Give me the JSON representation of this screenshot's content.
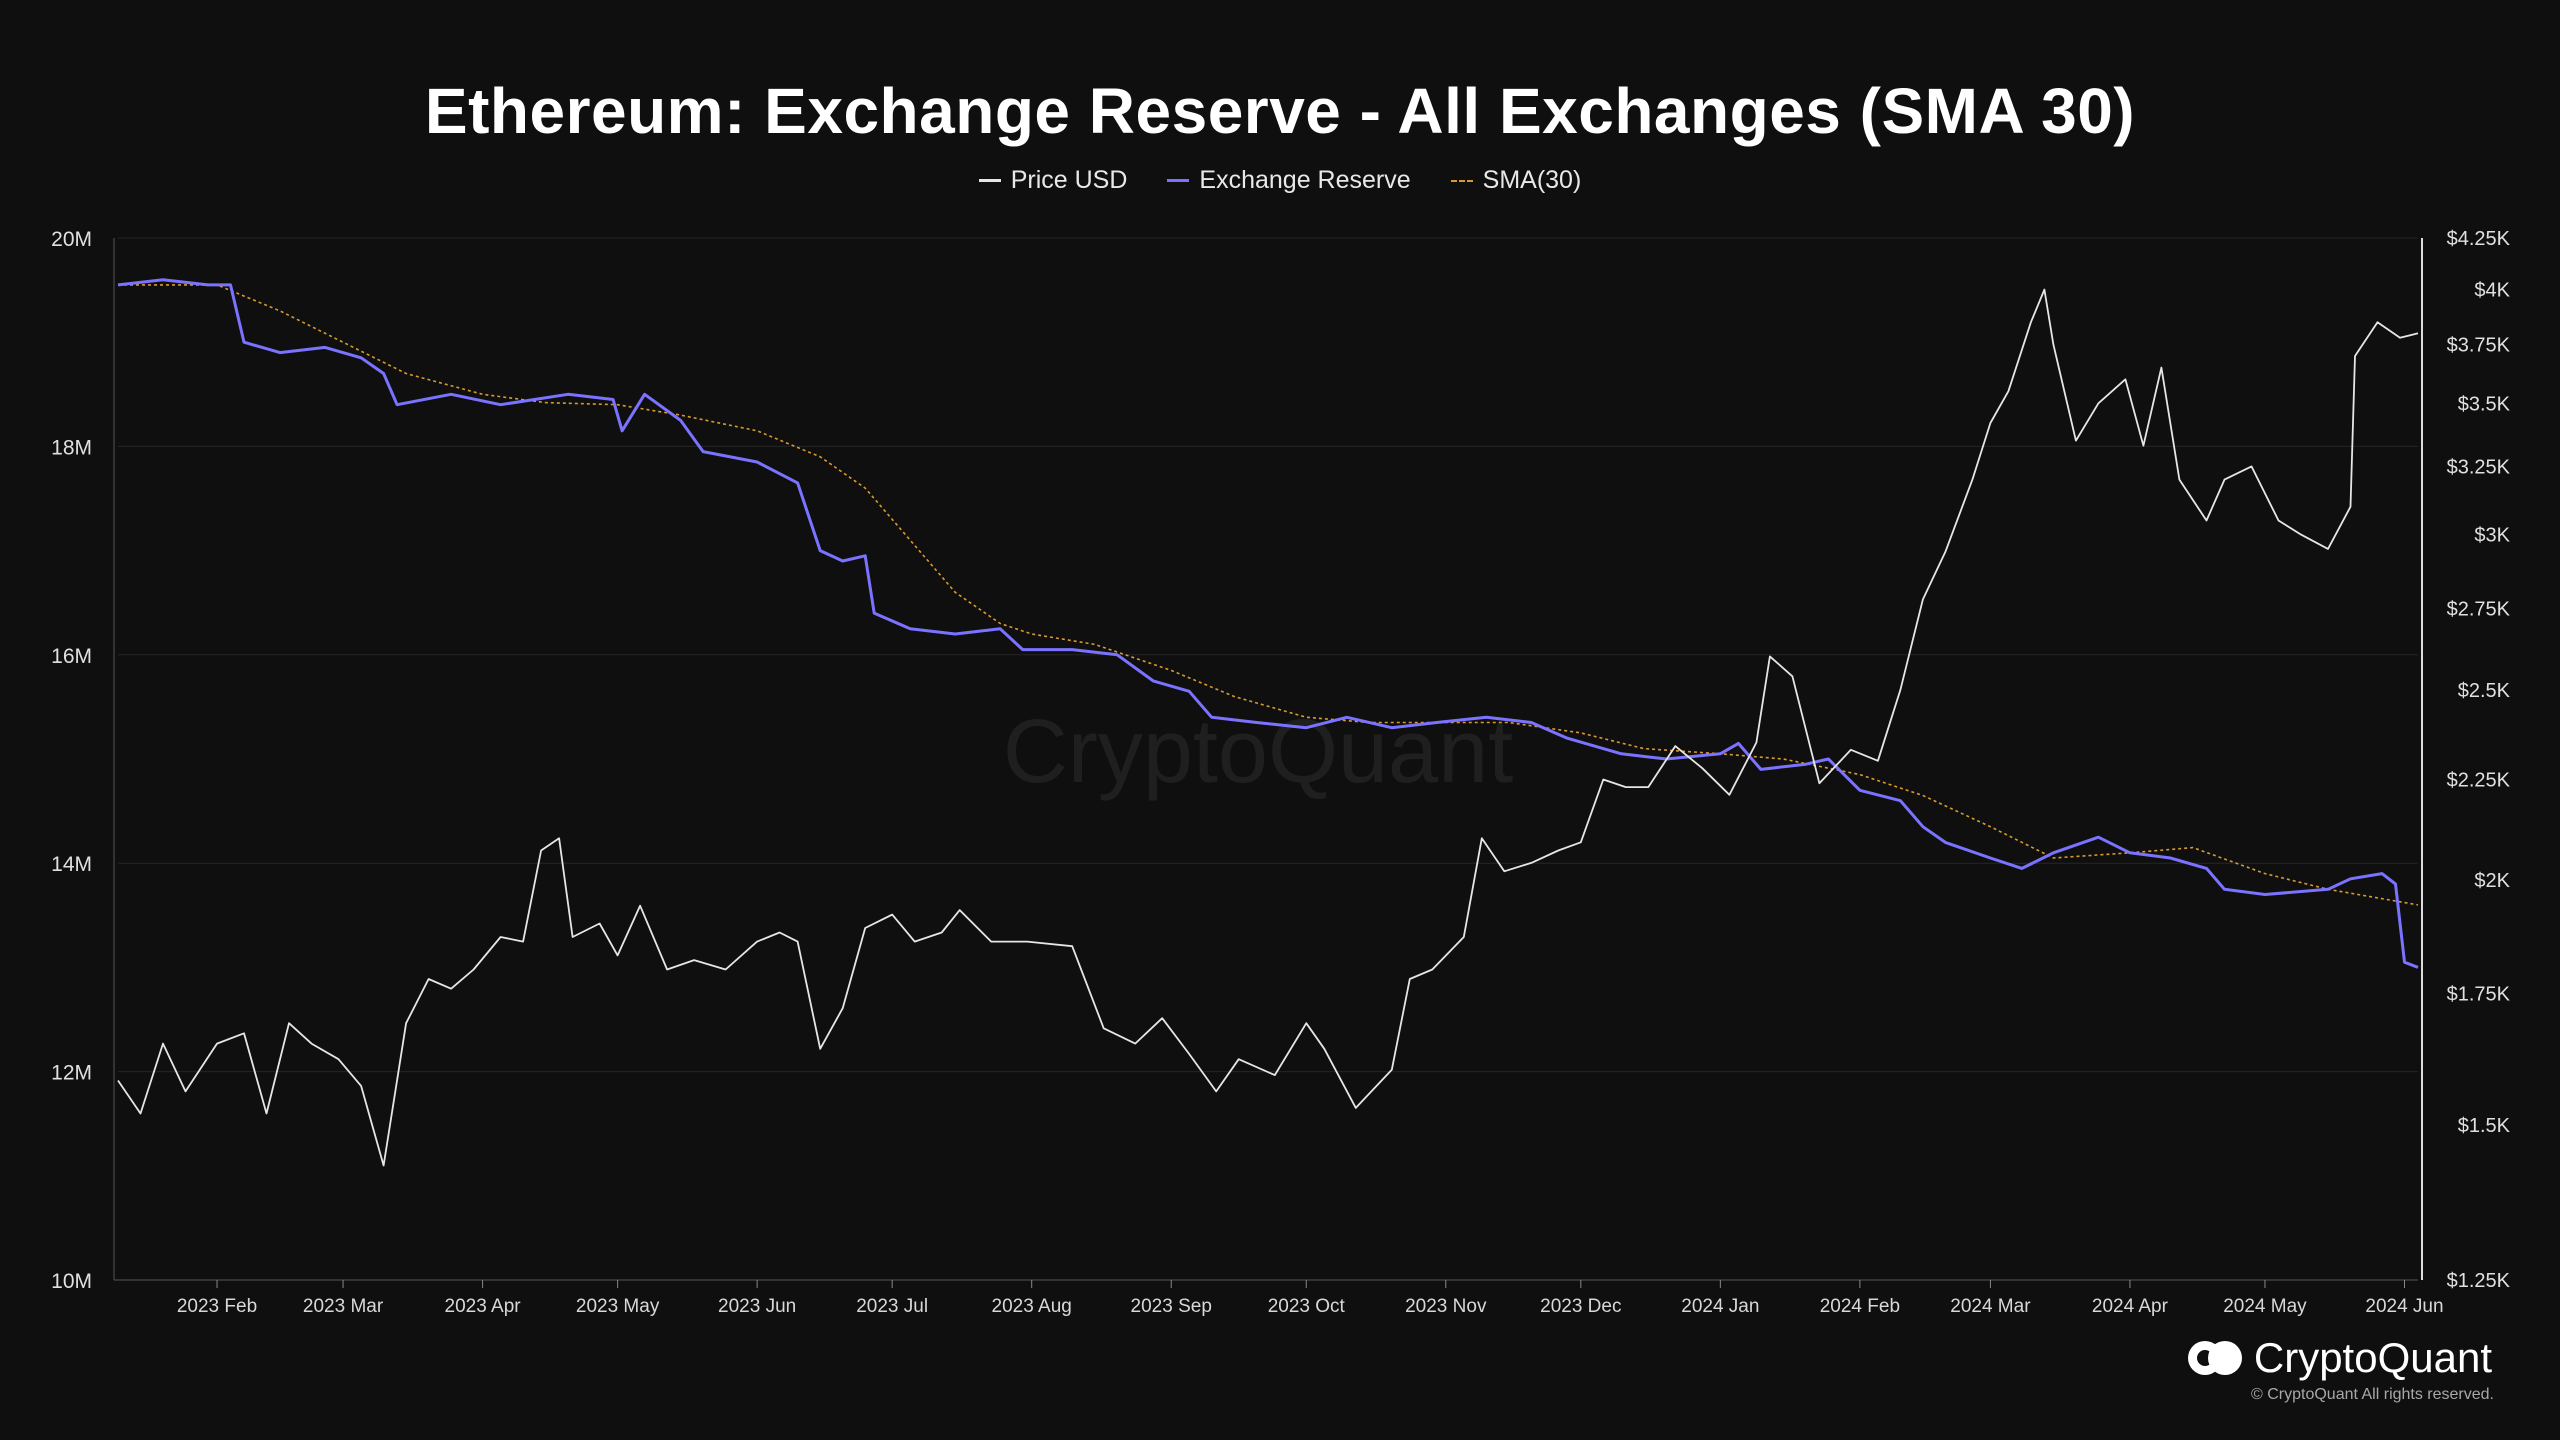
{
  "title": "Ethereum: Exchange Reserve - All Exchanges (SMA 30)",
  "legend": [
    {
      "label": "Price USD",
      "color": "#e6e6e6",
      "style": "solid"
    },
    {
      "label": "Exchange Reserve",
      "color": "#7b73ff",
      "style": "solid"
    },
    {
      "label": "SMA(30)",
      "color": "#d89a2b",
      "style": "dashed"
    }
  ],
  "watermark": "CryptoQuant",
  "brand": {
    "name": "CryptoQuant",
    "copyright": "© CryptoQuant All rights reserved."
  },
  "chart_data": {
    "type": "line",
    "x_ticks": [
      "2023 Feb",
      "2023 Mar",
      "2023 Apr",
      "2023 May",
      "2023 Jun",
      "2023 Jul",
      "2023 Aug",
      "2023 Sep",
      "2023 Oct",
      "2023 Nov",
      "2023 Dec",
      "2024 Jan",
      "2024 Feb",
      "2024 Mar",
      "2024 Apr",
      "2024 May",
      "2024 Jun"
    ],
    "x_range": [
      "2023-01-10",
      "2024-06-04"
    ],
    "left_axis": {
      "ticks": [
        "10M",
        "12M",
        "14M",
        "16M",
        "18M",
        "20M"
      ],
      "ylim": [
        10000000,
        20000000
      ]
    },
    "right_axis": {
      "scale": "log",
      "ticks": [
        "$1.25K",
        "$1.5K",
        "$1.75K",
        "$2K",
        "$2.25K",
        "$2.5K",
        "$2.75K",
        "$3K",
        "$3.25K",
        "$3.5K",
        "$3.75K",
        "$4K",
        "$4.25K"
      ],
      "tick_values": [
        1250,
        1500,
        1750,
        2000,
        2250,
        2500,
        2750,
        3000,
        3250,
        3500,
        3750,
        4000,
        4250
      ],
      "ylim": [
        1250,
        4250
      ]
    },
    "series": [
      {
        "name": "Exchange Reserve",
        "axis": "left",
        "color": "#7b73ff",
        "points": [
          [
            "2023-01-10",
            19550000
          ],
          [
            "2023-01-20",
            19600000
          ],
          [
            "2023-01-30",
            19550000
          ],
          [
            "2023-02-04",
            19550000
          ],
          [
            "2023-02-07",
            19000000
          ],
          [
            "2023-02-15",
            18900000
          ],
          [
            "2023-02-25",
            18950000
          ],
          [
            "2023-03-05",
            18850000
          ],
          [
            "2023-03-10",
            18700000
          ],
          [
            "2023-03-13",
            18400000
          ],
          [
            "2023-03-25",
            18500000
          ],
          [
            "2023-04-05",
            18400000
          ],
          [
            "2023-04-20",
            18500000
          ],
          [
            "2023-04-30",
            18450000
          ],
          [
            "2023-05-02",
            18150000
          ],
          [
            "2023-05-07",
            18500000
          ],
          [
            "2023-05-15",
            18250000
          ],
          [
            "2023-05-20",
            17950000
          ],
          [
            "2023-06-01",
            17850000
          ],
          [
            "2023-06-10",
            17650000
          ],
          [
            "2023-06-15",
            17000000
          ],
          [
            "2023-06-20",
            16900000
          ],
          [
            "2023-06-25",
            16950000
          ],
          [
            "2023-06-27",
            16400000
          ],
          [
            "2023-07-05",
            16250000
          ],
          [
            "2023-07-15",
            16200000
          ],
          [
            "2023-07-25",
            16250000
          ],
          [
            "2023-07-30",
            16050000
          ],
          [
            "2023-08-10",
            16050000
          ],
          [
            "2023-08-20",
            16000000
          ],
          [
            "2023-08-28",
            15750000
          ],
          [
            "2023-09-05",
            15650000
          ],
          [
            "2023-09-10",
            15400000
          ],
          [
            "2023-09-20",
            15350000
          ],
          [
            "2023-10-01",
            15300000
          ],
          [
            "2023-10-10",
            15400000
          ],
          [
            "2023-10-20",
            15300000
          ],
          [
            "2023-10-30",
            15350000
          ],
          [
            "2023-11-10",
            15400000
          ],
          [
            "2023-11-20",
            15350000
          ],
          [
            "2023-11-28",
            15200000
          ],
          [
            "2023-12-10",
            15050000
          ],
          [
            "2023-12-20",
            15000000
          ],
          [
            "2024-01-01",
            15050000
          ],
          [
            "2024-01-05",
            15150000
          ],
          [
            "2024-01-10",
            14900000
          ],
          [
            "2024-01-20",
            14950000
          ],
          [
            "2024-01-25",
            15000000
          ],
          [
            "2024-02-01",
            14700000
          ],
          [
            "2024-02-10",
            14600000
          ],
          [
            "2024-02-15",
            14350000
          ],
          [
            "2024-02-20",
            14200000
          ],
          [
            "2024-03-01",
            14050000
          ],
          [
            "2024-03-08",
            13950000
          ],
          [
            "2024-03-15",
            14100000
          ],
          [
            "2024-03-25",
            14250000
          ],
          [
            "2024-04-01",
            14100000
          ],
          [
            "2024-04-10",
            14050000
          ],
          [
            "2024-04-18",
            13950000
          ],
          [
            "2024-04-22",
            13750000
          ],
          [
            "2024-05-01",
            13700000
          ],
          [
            "2024-05-15",
            13750000
          ],
          [
            "2024-05-20",
            13850000
          ],
          [
            "2024-05-27",
            13900000
          ],
          [
            "2024-05-30",
            13800000
          ],
          [
            "2024-06-01",
            13050000
          ],
          [
            "2024-06-04",
            13000000
          ]
        ]
      },
      {
        "name": "SMA(30)",
        "axis": "left",
        "color": "#d89a2b",
        "points": [
          [
            "2023-01-10",
            19550000
          ],
          [
            "2023-02-01",
            19550000
          ],
          [
            "2023-02-15",
            19300000
          ],
          [
            "2023-03-01",
            19000000
          ],
          [
            "2023-03-15",
            18700000
          ],
          [
            "2023-04-01",
            18500000
          ],
          [
            "2023-04-15",
            18420000
          ],
          [
            "2023-05-01",
            18400000
          ],
          [
            "2023-05-15",
            18300000
          ],
          [
            "2023-06-01",
            18150000
          ],
          [
            "2023-06-15",
            17900000
          ],
          [
            "2023-06-25",
            17600000
          ],
          [
            "2023-07-05",
            17100000
          ],
          [
            "2023-07-15",
            16600000
          ],
          [
            "2023-07-25",
            16300000
          ],
          [
            "2023-08-01",
            16200000
          ],
          [
            "2023-08-15",
            16100000
          ],
          [
            "2023-09-01",
            15850000
          ],
          [
            "2023-09-15",
            15600000
          ],
          [
            "2023-10-01",
            15400000
          ],
          [
            "2023-10-15",
            15350000
          ],
          [
            "2023-11-01",
            15350000
          ],
          [
            "2023-11-15",
            15350000
          ],
          [
            "2023-12-01",
            15250000
          ],
          [
            "2023-12-15",
            15100000
          ],
          [
            "2024-01-01",
            15050000
          ],
          [
            "2024-01-15",
            15000000
          ],
          [
            "2024-02-01",
            14850000
          ],
          [
            "2024-02-15",
            14650000
          ],
          [
            "2024-03-01",
            14350000
          ],
          [
            "2024-03-15",
            14050000
          ],
          [
            "2024-04-01",
            14100000
          ],
          [
            "2024-04-15",
            14150000
          ],
          [
            "2024-05-01",
            13900000
          ],
          [
            "2024-05-15",
            13750000
          ],
          [
            "2024-06-04",
            13600000
          ]
        ]
      },
      {
        "name": "Price USD",
        "axis": "right",
        "color": "#e6e6e6",
        "points": [
          [
            "2023-01-10",
            1580
          ],
          [
            "2023-01-15",
            1520
          ],
          [
            "2023-01-20",
            1650
          ],
          [
            "2023-01-25",
            1560
          ],
          [
            "2023-02-01",
            1650
          ],
          [
            "2023-02-07",
            1670
          ],
          [
            "2023-02-12",
            1520
          ],
          [
            "2023-02-17",
            1690
          ],
          [
            "2023-02-22",
            1650
          ],
          [
            "2023-02-28",
            1620
          ],
          [
            "2023-03-05",
            1570
          ],
          [
            "2023-03-10",
            1430
          ],
          [
            "2023-03-15",
            1690
          ],
          [
            "2023-03-20",
            1780
          ],
          [
            "2023-03-25",
            1760
          ],
          [
            "2023-03-30",
            1800
          ],
          [
            "2023-04-05",
            1870
          ],
          [
            "2023-04-10",
            1860
          ],
          [
            "2023-04-14",
            2070
          ],
          [
            "2023-04-18",
            2100
          ],
          [
            "2023-04-21",
            1870
          ],
          [
            "2023-04-27",
            1900
          ],
          [
            "2023-05-01",
            1830
          ],
          [
            "2023-05-06",
            1940
          ],
          [
            "2023-05-12",
            1800
          ],
          [
            "2023-05-18",
            1820
          ],
          [
            "2023-05-25",
            1800
          ],
          [
            "2023-06-01",
            1860
          ],
          [
            "2023-06-06",
            1880
          ],
          [
            "2023-06-10",
            1860
          ],
          [
            "2023-06-15",
            1640
          ],
          [
            "2023-06-20",
            1720
          ],
          [
            "2023-06-25",
            1890
          ],
          [
            "2023-07-01",
            1920
          ],
          [
            "2023-07-06",
            1860
          ],
          [
            "2023-07-12",
            1880
          ],
          [
            "2023-07-16",
            1930
          ],
          [
            "2023-07-23",
            1860
          ],
          [
            "2023-07-31",
            1860
          ],
          [
            "2023-08-10",
            1850
          ],
          [
            "2023-08-17",
            1680
          ],
          [
            "2023-08-24",
            1650
          ],
          [
            "2023-08-30",
            1700
          ],
          [
            "2023-09-05",
            1630
          ],
          [
            "2023-09-11",
            1560
          ],
          [
            "2023-09-16",
            1620
          ],
          [
            "2023-09-24",
            1590
          ],
          [
            "2023-10-01",
            1690
          ],
          [
            "2023-10-05",
            1640
          ],
          [
            "2023-10-12",
            1530
          ],
          [
            "2023-10-20",
            1600
          ],
          [
            "2023-10-24",
            1780
          ],
          [
            "2023-10-29",
            1800
          ],
          [
            "2023-11-05",
            1870
          ],
          [
            "2023-11-09",
            2100
          ],
          [
            "2023-11-14",
            2020
          ],
          [
            "2023-11-20",
            2040
          ],
          [
            "2023-11-26",
            2070
          ],
          [
            "2023-12-01",
            2090
          ],
          [
            "2023-12-06",
            2250
          ],
          [
            "2023-12-11",
            2230
          ],
          [
            "2023-12-16",
            2230
          ],
          [
            "2023-12-22",
            2340
          ],
          [
            "2023-12-28",
            2280
          ],
          [
            "2024-01-03",
            2210
          ],
          [
            "2024-01-09",
            2350
          ],
          [
            "2024-01-12",
            2600
          ],
          [
            "2024-01-17",
            2540
          ],
          [
            "2024-01-23",
            2240
          ],
          [
            "2024-01-30",
            2330
          ],
          [
            "2024-02-05",
            2300
          ],
          [
            "2024-02-10",
            2500
          ],
          [
            "2024-02-15",
            2780
          ],
          [
            "2024-02-20",
            2940
          ],
          [
            "2024-02-26",
            3200
          ],
          [
            "2024-03-01",
            3420
          ],
          [
            "2024-03-05",
            3550
          ],
          [
            "2024-03-10",
            3850
          ],
          [
            "2024-03-13",
            4000
          ],
          [
            "2024-03-15",
            3750
          ],
          [
            "2024-03-20",
            3350
          ],
          [
            "2024-03-25",
            3500
          ],
          [
            "2024-03-31",
            3600
          ],
          [
            "2024-04-04",
            3330
          ],
          [
            "2024-04-08",
            3650
          ],
          [
            "2024-04-12",
            3200
          ],
          [
            "2024-04-18",
            3050
          ],
          [
            "2024-04-22",
            3200
          ],
          [
            "2024-04-28",
            3250
          ],
          [
            "2024-05-04",
            3050
          ],
          [
            "2024-05-09",
            3000
          ],
          [
            "2024-05-15",
            2950
          ],
          [
            "2024-05-20",
            3100
          ],
          [
            "2024-05-21",
            3700
          ],
          [
            "2024-05-26",
            3850
          ],
          [
            "2024-05-31",
            3780
          ],
          [
            "2024-06-04",
            3800
          ]
        ]
      }
    ],
    "grid": true,
    "legend_position": "top-center"
  }
}
